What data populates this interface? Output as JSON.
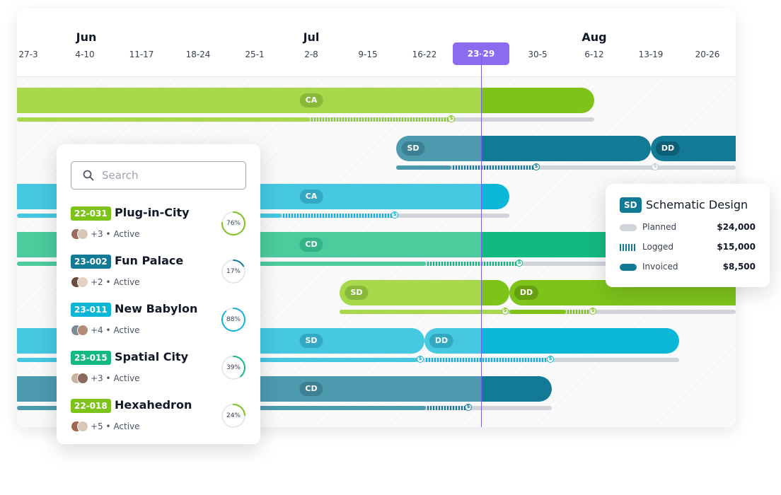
{
  "timeline": {
    "months": [
      {
        "label": "Jun"
      },
      {
        "label": "Jul"
      },
      {
        "label": "Aug"
      }
    ],
    "weeks": [
      "27-3",
      "4-10",
      "11-17",
      "18-24",
      "25-1",
      "2-8",
      "9-15",
      "16-22",
      "23-29",
      "30-5",
      "6-12",
      "13-19",
      "20-26"
    ],
    "current_week": "23-29"
  },
  "phase_labels": {
    "row1": [
      "CA"
    ],
    "row2": [
      "SD",
      "DD"
    ],
    "row3": [
      "CA"
    ],
    "row4": [
      "CD"
    ],
    "row5": [
      "SD",
      "DD"
    ],
    "row6": [
      "SD",
      "DD"
    ],
    "row7": [
      "CD"
    ]
  },
  "colors": {
    "lime": "#7ec31a",
    "lime_light": "#a6d84a",
    "teal_dark": "#127a95",
    "teal_light": "#4d9aae",
    "cyan": "#0bb6d6",
    "cyan_light": "#45c8e0",
    "green": "#13b882",
    "green_light": "#4ccb9c",
    "today_line": "#7c5ce8",
    "current_week": "#8b6cf0"
  },
  "search": {
    "placeholder": "Search"
  },
  "projects": [
    {
      "code": "22-031",
      "name": "Plug-in-City",
      "extra": "+3",
      "status": "Active",
      "progress_label": "76%",
      "progress": 0.76,
      "color": "#7ec31a"
    },
    {
      "code": "23-002",
      "name": "Fun Palace",
      "extra": "+2",
      "status": "Active",
      "progress_label": "17%",
      "progress": 0.17,
      "color": "#127a95"
    },
    {
      "code": "23-011",
      "name": "New Babylon",
      "extra": "+4",
      "status": "Active",
      "progress_label": "88%",
      "progress": 0.88,
      "color": "#0bb6d6"
    },
    {
      "code": "23-015",
      "name": "Spatial City",
      "extra": "+3",
      "status": "Active",
      "progress_label": "39%",
      "progress": 0.39,
      "color": "#13b882"
    },
    {
      "code": "22-018",
      "name": "Hexahedron",
      "extra": "+5",
      "status": "Active",
      "progress_label": "24%",
      "progress": 0.24,
      "color": "#7ec31a"
    }
  ],
  "meta_separator": "•",
  "legend": {
    "code": "SD",
    "title": "Schematic Design",
    "rows": [
      {
        "label": "Planned",
        "value": "$24,000"
      },
      {
        "label": "Logged",
        "value": "$15,000"
      },
      {
        "label": "Invoiced",
        "value": "$8,500"
      }
    ]
  }
}
